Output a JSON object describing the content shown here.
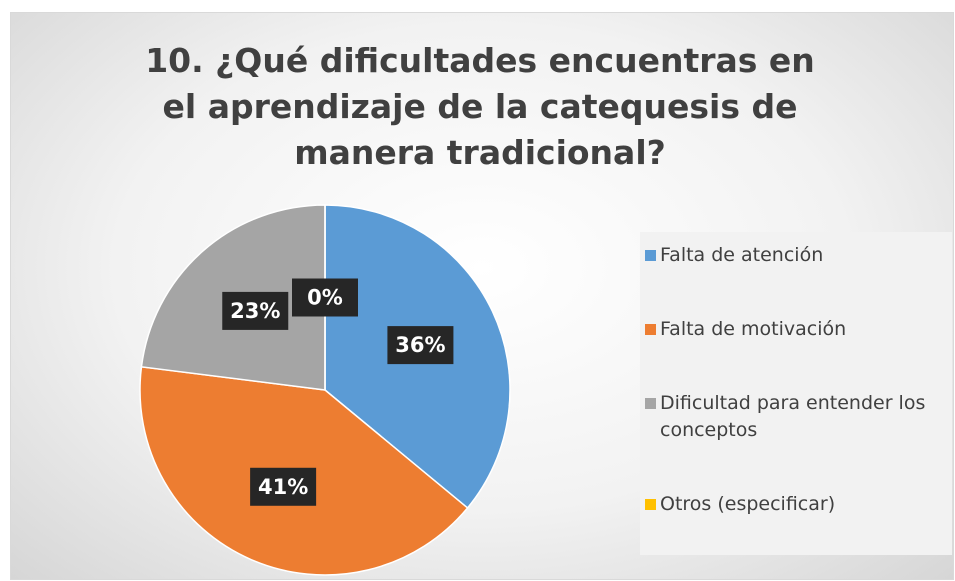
{
  "chart_data": {
    "type": "pie",
    "title": "10. ¿Qué dificultades encuentras en el aprendizaje de la catequesis de manera tradicional?",
    "categories": [
      "Falta de atención",
      "Falta de motivación",
      "Dificultad para entender los conceptos",
      "Otros (especificar)"
    ],
    "values": [
      36,
      41,
      23,
      0
    ],
    "value_labels": [
      "36%",
      "41%",
      "23%",
      "0%"
    ],
    "colors": [
      "#5b9bd5",
      "#ed7d31",
      "#a5a5a5",
      "#ffc000"
    ],
    "legend": "right"
  }
}
